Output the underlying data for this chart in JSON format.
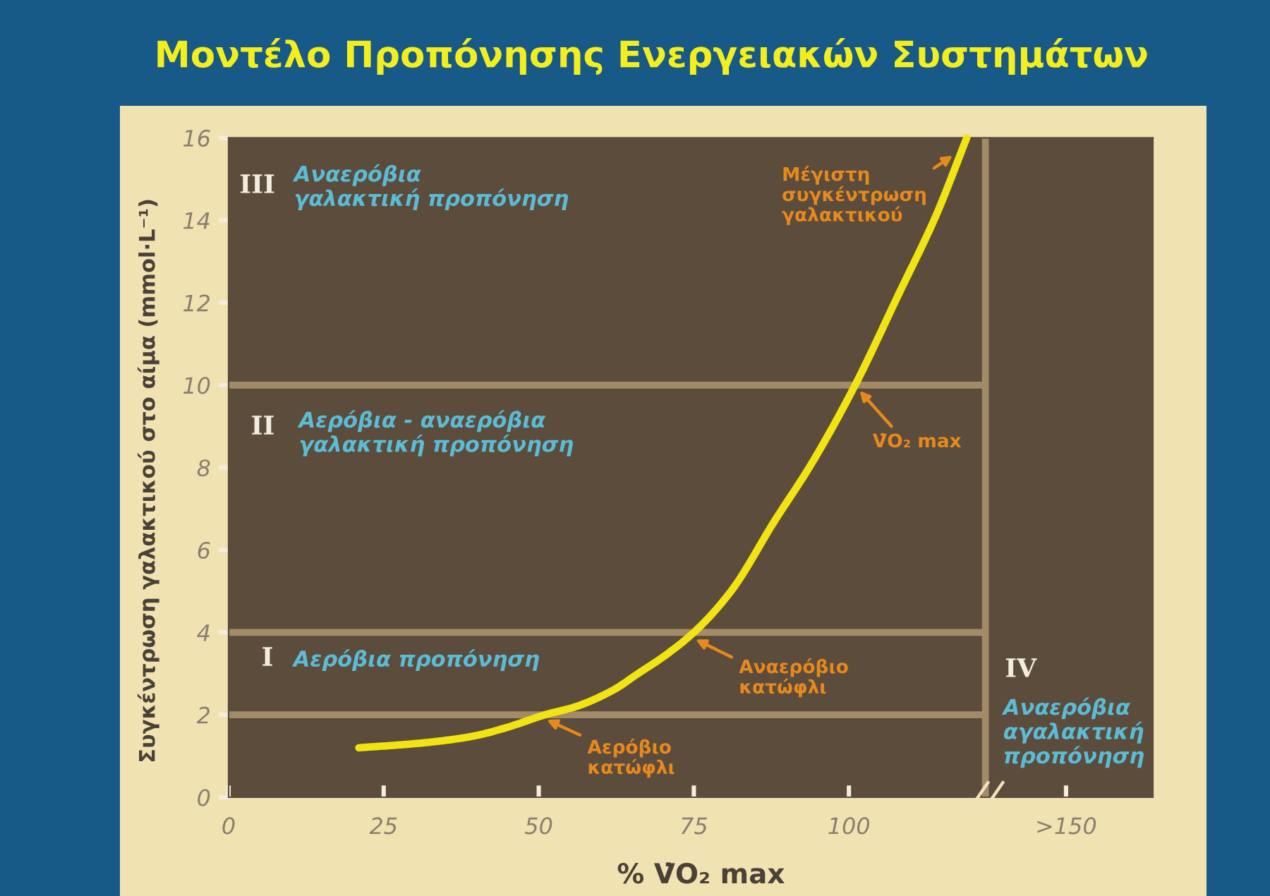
{
  "chart_data": {
    "type": "line",
    "title": "Μοντέλο Προπόνησης Ενεργειακών Συστημάτων",
    "xlabel": "% V̇O₂ max",
    "ylabel": "Συγκέντρωση γαλακτικού στο αίμα (mmol·L⁻¹)",
    "x": [
      21,
      30,
      36,
      40,
      45,
      51,
      56,
      62,
      66,
      70,
      75,
      81,
      88,
      94,
      101,
      108,
      114,
      119
    ],
    "series": [
      {
        "color": "#f2e313",
        "values": [
          1.2,
          1.3,
          1.4,
          1.5,
          1.7,
          2.0,
          2.2,
          2.6,
          3.0,
          3.4,
          4.0,
          5.0,
          6.7,
          8.1,
          10.0,
          12.2,
          14.1,
          16.0
        ]
      }
    ],
    "xlim": [
      0,
      149
    ],
    "xticks": [
      0,
      25,
      50,
      75,
      100,
      {
        "value": 135,
        "label": ">150"
      }
    ],
    "ylim": [
      0,
      16
    ],
    "yticks": [
      0,
      2,
      4,
      6,
      8,
      10,
      12,
      14,
      16
    ],
    "ref_lines": [
      {
        "axis": "y",
        "value": 2,
        "color": "#a28b68"
      },
      {
        "axis": "y",
        "value": 4,
        "color": "#a28b68"
      },
      {
        "axis": "y",
        "value": 10,
        "color": "#a28b68"
      },
      {
        "axis": "x",
        "value": 122,
        "color": "#a28b68"
      }
    ],
    "annotations": [
      "III",
      "Αναερόβια\nγαλακτική προπόνηση",
      "II",
      "Αερόβια - αναερόβια\nγαλακτική προπόνηση",
      "I",
      "Αερόβια προπόνηση",
      "IV",
      "Αναερόβια\nαγαλακτική\nπροπόνηση",
      {
        "text": "Αερόβιο\nκατώφλι",
        "x": 51,
        "y": 1.9
      },
      {
        "text": "Αναερόβιο\nκατώφλι",
        "x": 75,
        "y": 3.85
      },
      {
        "text": "V̇O₂ max",
        "x": 101.5,
        "y": 9.9
      },
      {
        "text": "Μέγιστη\nσυγκέντρωση\nγαλακτικού",
        "x": 117,
        "y": 15.6
      }
    ],
    "line_style": "solid"
  }
}
